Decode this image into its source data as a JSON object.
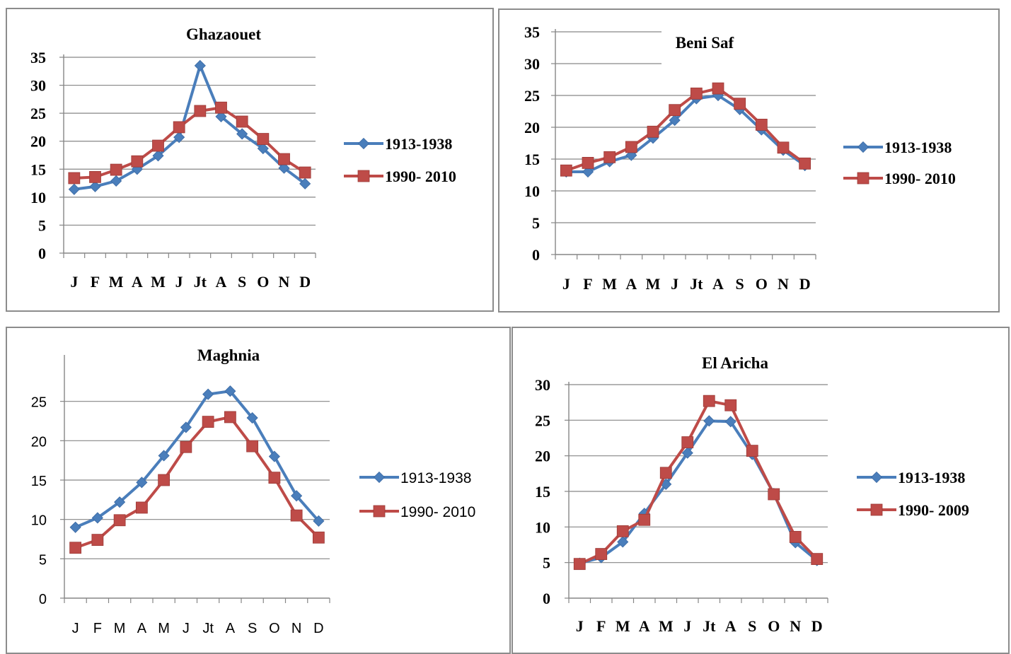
{
  "chart_data": [
    {
      "type": "line",
      "title": "Ghazaouet",
      "categories": [
        "J",
        "F",
        "M",
        "A",
        "M",
        "J",
        "Jt",
        "A",
        "S",
        "O",
        "N",
        "D"
      ],
      "series": [
        {
          "name": "1913-1938",
          "values": [
            11.4,
            11.9,
            12.9,
            15.0,
            17.4,
            20.7,
            33.5,
            24.4,
            21.3,
            18.7,
            15.2,
            12.4
          ],
          "color": "#4a7ebb"
        },
        {
          "name": "1990- 2010",
          "values": [
            13.4,
            13.6,
            14.9,
            16.4,
            19.2,
            22.5,
            25.4,
            26.0,
            23.5,
            20.4,
            16.8,
            14.4
          ],
          "color": "#be4b48"
        }
      ],
      "ylim": [
        0,
        35
      ],
      "yticks": [
        0,
        5,
        10,
        15,
        20,
        25,
        30,
        35
      ],
      "grid": true,
      "legend": "right",
      "bold": true
    },
    {
      "type": "line",
      "title": "Beni Saf",
      "categories": [
        "J",
        "F",
        "M",
        "A",
        "M",
        "J",
        "Jt",
        "A",
        "S",
        "O",
        "N",
        "D"
      ],
      "series": [
        {
          "name": "1913-1938",
          "values": [
            13.0,
            13.0,
            14.6,
            15.6,
            18.3,
            21.1,
            24.5,
            25.0,
            22.8,
            19.6,
            16.4,
            14.0
          ],
          "color": "#4a7ebb"
        },
        {
          "name": "1990- 2010",
          "values": [
            13.2,
            14.4,
            15.3,
            16.9,
            19.3,
            22.7,
            25.3,
            26.1,
            23.7,
            20.4,
            16.8,
            14.3
          ],
          "color": "#be4b48"
        }
      ],
      "ylim": [
        0,
        35
      ],
      "yticks": [
        0,
        5,
        10,
        15,
        20,
        25,
        30,
        35
      ],
      "grid": true,
      "legend": "right",
      "bold": true
    },
    {
      "type": "line",
      "title": "Maghnia",
      "categories": [
        "J",
        "F",
        "M",
        "A",
        "M",
        "J",
        "Jt",
        "A",
        "S",
        "O",
        "N",
        "D"
      ],
      "series": [
        {
          "name": "1913-1938",
          "values": [
            9.0,
            10.2,
            12.2,
            14.7,
            18.1,
            21.7,
            25.9,
            26.3,
            22.9,
            18.0,
            13.0,
            9.8
          ],
          "color": "#4a7ebb"
        },
        {
          "name": "1990- 2010",
          "values": [
            6.4,
            7.4,
            9.9,
            11.5,
            15.0,
            19.2,
            22.4,
            23.0,
            19.3,
            15.3,
            10.5,
            7.7
          ],
          "color": "#be4b48"
        }
      ],
      "ylim": [
        0,
        30
      ],
      "yticks": [
        0,
        5,
        10,
        15,
        20,
        25
      ],
      "grid": true,
      "legend": "right",
      "bold": false
    },
    {
      "type": "line",
      "title": "El Aricha",
      "categories": [
        "J",
        "F",
        "M",
        "A",
        "M",
        "J",
        "Jt",
        "A",
        "S",
        "O",
        "N",
        "D"
      ],
      "series": [
        {
          "name": "1913-1938",
          "values": [
            4.9,
            5.7,
            7.9,
            11.9,
            16.0,
            20.4,
            24.9,
            24.8,
            20.2,
            14.7,
            7.8,
            5.3
          ],
          "color": "#4a7ebb"
        },
        {
          "name": "1990- 2009",
          "values": [
            4.8,
            6.2,
            9.4,
            11.0,
            17.6,
            21.9,
            27.7,
            27.1,
            20.7,
            14.6,
            8.6,
            5.5
          ],
          "color": "#be4b48"
        }
      ],
      "ylim": [
        0,
        30
      ],
      "yticks": [
        0,
        5,
        10,
        15,
        20,
        25,
        30
      ],
      "grid": true,
      "legend": "right",
      "bold": true
    }
  ]
}
